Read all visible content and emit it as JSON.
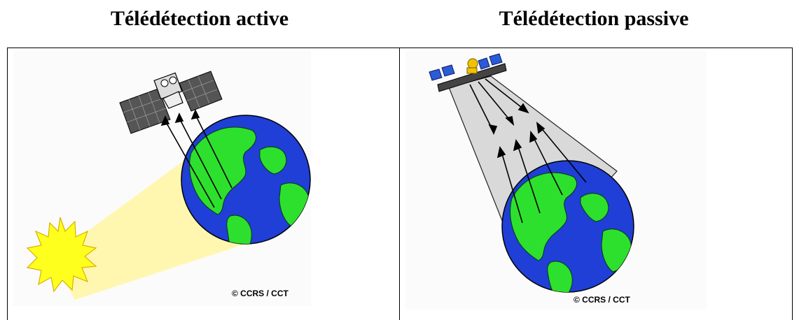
{
  "headings": {
    "active": "Télédétection active",
    "passive": "Télédétection passive"
  },
  "credits": {
    "left": "© CCRS / CCT",
    "right": "© CCRS / CCT"
  },
  "colors": {
    "ocean": "#1f3fd6",
    "land": "#2ee02e",
    "sun": "#ffff1e",
    "beam_yellow": "#fff7b0",
    "beam_grey": "#d9d9d9"
  }
}
